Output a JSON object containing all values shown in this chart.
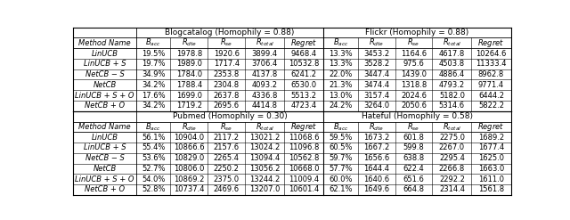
{
  "top_header_blogcatalog": "Blogcatalog (Homophily = 0.88)",
  "top_header_flickr": "Flickr (Homophily = 0.88)",
  "bottom_header_pubmed": "Pubmed (Homophily = 0.30)",
  "bottom_header_hateful": "Hateful (Homophily = 0.58)",
  "method_names": [
    "LinUCB",
    "LinUCB + S",
    "NetCB - S",
    "NetCB",
    "LinUCB + S + O",
    "NetCB + O"
  ],
  "blogcatalog": [
    [
      "19.5%",
      "1978.8",
      "1920.6",
      "3899.4",
      "9468.4"
    ],
    [
      "19.7%",
      "1989.0",
      "1717.4",
      "3706.4",
      "10532.8"
    ],
    [
      "34.9%",
      "1784.0",
      "2353.8",
      "4137.8",
      "6241.2"
    ],
    [
      "34.2%",
      "1788.4",
      "2304.8",
      "4093.2",
      "6530.0"
    ],
    [
      "17.6%",
      "1699.0",
      "2637.8",
      "4336.8",
      "5513.2"
    ],
    [
      "34.2%",
      "1719.2",
      "2695.6",
      "4414.8",
      "4723.4"
    ]
  ],
  "flickr": [
    [
      "13.3%",
      "3453.2",
      "1164.6",
      "4617.8",
      "10264.6"
    ],
    [
      "13.3%",
      "3528.2",
      "975.6",
      "4503.8",
      "11333.4"
    ],
    [
      "22.0%",
      "3447.4",
      "1439.0",
      "4886.4",
      "8962.8"
    ],
    [
      "21.3%",
      "3474.4",
      "1318.8",
      "4793.2",
      "9771.4"
    ],
    [
      "13.0%",
      "3157.4",
      "2024.6",
      "5182.0",
      "6444.2"
    ],
    [
      "24.2%",
      "3264.0",
      "2050.6",
      "5314.6",
      "5822.2"
    ]
  ],
  "pubmed": [
    [
      "56.1%",
      "10904.0",
      "2117.2",
      "13021.2",
      "11068.6"
    ],
    [
      "55.4%",
      "10866.6",
      "2157.6",
      "13024.2",
      "11096.8"
    ],
    [
      "53.6%",
      "10829.0",
      "2265.4",
      "13094.4",
      "10562.8"
    ],
    [
      "52.7%",
      "10806.0",
      "2250.2",
      "13056.2",
      "10668.0"
    ],
    [
      "54.0%",
      "10869.2",
      "2375.0",
      "13244.2",
      "11009.4"
    ],
    [
      "52.8%",
      "10737.4",
      "2469.6",
      "13207.0",
      "10601.4"
    ]
  ],
  "hateful": [
    [
      "59.5%",
      "1673.2",
      "601.8",
      "2275.0",
      "1689.2"
    ],
    [
      "60.5%",
      "1667.2",
      "599.8",
      "2267.0",
      "1677.4"
    ],
    [
      "59.7%",
      "1656.6",
      "638.8",
      "2295.4",
      "1625.0"
    ],
    [
      "57.7%",
      "1644.4",
      "622.4",
      "2266.8",
      "1663.0"
    ],
    [
      "60.0%",
      "1640.6",
      "651.6",
      "2292.2",
      "1611.0"
    ],
    [
      "62.1%",
      "1649.6",
      "664.8",
      "2314.4",
      "1561.8"
    ]
  ],
  "figsize": [
    6.4,
    2.47
  ],
  "dpi": 100,
  "fontsize": 6.0,
  "header_fontsize": 6.5
}
